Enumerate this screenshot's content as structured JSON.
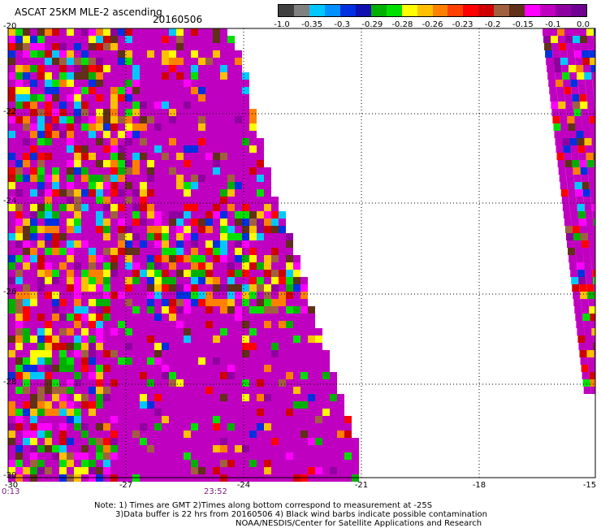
{
  "header": {
    "title": "ASCAT 25KM MLE-2 ascending",
    "date": "20160506"
  },
  "colorbar": {
    "colors": [
      "#404040",
      "#808080",
      "#00c8ff",
      "#0090ff",
      "#0030e0",
      "#1010b0",
      "#00b000",
      "#00e000",
      "#ffff00",
      "#ffc000",
      "#ff8000",
      "#ff4000",
      "#ff0000",
      "#d00000",
      "#a06040",
      "#603018",
      "#ff00ff",
      "#c000c0",
      "#9000a0",
      "#700090"
    ],
    "labels": [
      "-1.0",
      "-0.35",
      "-0.3",
      "-0.29",
      "-0.28",
      "-0.26",
      "-0.23",
      "-0.2",
      "-0.15",
      "-0.1",
      "0.0"
    ]
  },
  "map": {
    "lon_range": [
      -30,
      -15
    ],
    "lat_range": [
      -30,
      -20
    ],
    "x_ticks": [
      "-30",
      "-27",
      "-24",
      "-21",
      "-18",
      "-15"
    ],
    "y_labels": [
      "-20",
      "-22",
      "-24",
      "-26",
      "-28",
      "-30"
    ],
    "time_labels": [
      "0:13",
      "23:52"
    ],
    "swath_colors": [
      "#c000c0",
      "#ff00ff",
      "#ff0000",
      "#ffff00",
      "#ffc000",
      "#0030e0",
      "#00c8ff",
      "#00b000",
      "#a06040",
      "#603018",
      "#ff8000",
      "#d00000",
      "#9000a0",
      "#00e000"
    ]
  },
  "notes": [
    "Note: 1) Times are GMT 2)Times along bottom correspond to measurement at -25S",
    "3)Data buffer is 22 hrs from 20160506 4) Black wind barbs indicate possible contamination",
    "NOAA/NESDIS/Center for Satellite Applications and Research"
  ]
}
